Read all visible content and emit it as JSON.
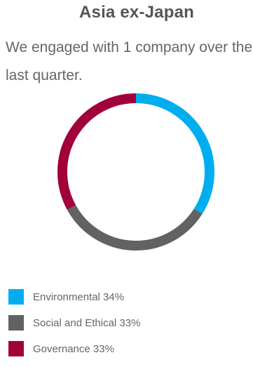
{
  "header": {
    "title": "Asia ex-Japan",
    "subtitle": "We engaged with 1 company over the last quarter."
  },
  "chart_data": {
    "type": "pie",
    "style": "donut",
    "legend_position": "bottom-left",
    "categories": [
      "Environmental",
      "Social and Ethical",
      "Governance"
    ],
    "values": [
      34,
      33,
      33
    ],
    "colors": [
      "#00aeef",
      "#616264",
      "#a1003b"
    ],
    "legend": [
      {
        "label": "Environmental 34%",
        "color": "#00aeef"
      },
      {
        "label": "Social and Ethical 33%",
        "color": "#616264"
      },
      {
        "label": "Governance 33%",
        "color": "#a1003b"
      }
    ]
  }
}
